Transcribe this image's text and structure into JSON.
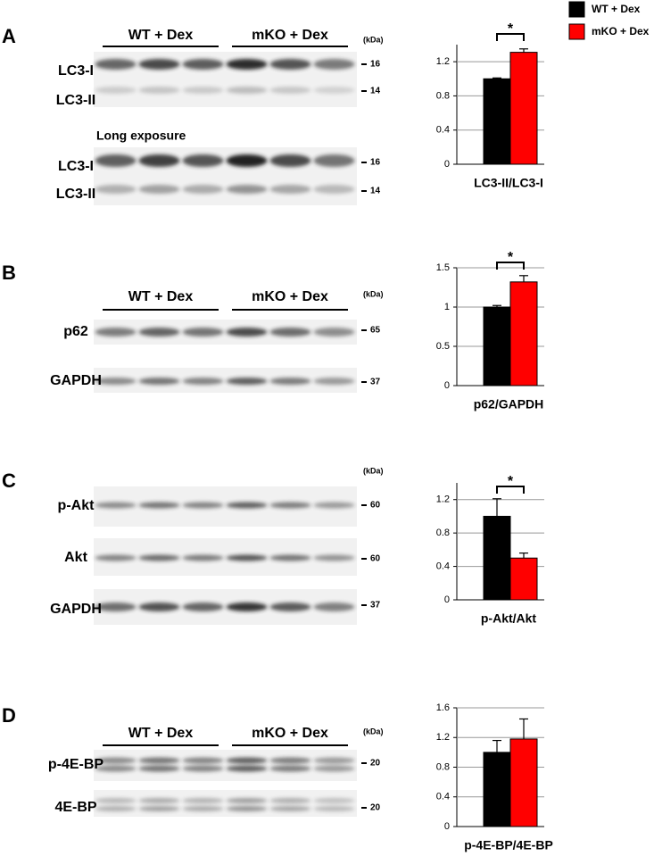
{
  "legend": {
    "labels": [
      "WT + Dex",
      "mKO + Dex"
    ],
    "colors": [
      "#000000",
      "#ff0000"
    ]
  },
  "panels": [
    {
      "letter": "A",
      "groups": [
        "WT + Dex",
        "mKO + Dex"
      ],
      "unit": "(kDa)",
      "note": "Long exposure",
      "blots": [
        {
          "label": "LC3-I",
          "marker": 16
        },
        {
          "label": "LC3-II",
          "marker": 14
        },
        {
          "label": "LC3-I",
          "marker": 16
        },
        {
          "label": "LC3-II",
          "marker": 14
        }
      ]
    },
    {
      "letter": "B",
      "groups": [
        "WT + Dex",
        "mKO + Dex"
      ],
      "unit": "(kDa)",
      "blots": [
        {
          "label": "p62",
          "marker": 65
        },
        {
          "label": "GAPDH",
          "marker": 37
        }
      ]
    },
    {
      "letter": "C",
      "unit": "(kDa)",
      "blots": [
        {
          "label": "p-Akt",
          "marker": 60
        },
        {
          "label": "Akt",
          "marker": 60
        },
        {
          "label": "GAPDH",
          "marker": 37
        }
      ]
    },
    {
      "letter": "D",
      "groups": [
        "WT + Dex",
        "mKO + Dex"
      ],
      "unit": "(kDa)",
      "blots": [
        {
          "label": "p-4E-BP",
          "marker": 20
        },
        {
          "label": "4E-BP",
          "marker": 20
        }
      ]
    }
  ],
  "chart_data": [
    {
      "type": "bar",
      "xlabel": "LC3-II/LC3-I",
      "values": [
        1.0,
        1.31
      ],
      "errors": [
        0.01,
        0.04
      ],
      "ylim": [
        0,
        1.4
      ],
      "yticks": [
        0,
        0.4,
        0.8,
        1.2
      ],
      "grid": true,
      "annotation": "*"
    },
    {
      "type": "bar",
      "xlabel": "p62/GAPDH",
      "values": [
        1.0,
        1.32
      ],
      "errors": [
        0.02,
        0.08
      ],
      "ylim": [
        0,
        1.5
      ],
      "yticks": [
        0,
        0.5,
        1,
        1.5
      ],
      "grid": true,
      "annotation": "*"
    },
    {
      "type": "bar",
      "xlabel": "p-Akt/Akt",
      "values": [
        1.0,
        0.5
      ],
      "errors": [
        0.21,
        0.06
      ],
      "ylim": [
        0,
        1.4
      ],
      "yticks": [
        0,
        0.4,
        0.8,
        1.2
      ],
      "grid": true,
      "annotation": "*"
    },
    {
      "type": "bar",
      "xlabel": "p-4E-BP/4E-BP",
      "values": [
        1.0,
        1.18
      ],
      "errors": [
        0.16,
        0.27
      ],
      "ylim": [
        0,
        1.6
      ],
      "yticks": [
        0,
        0.4,
        0.8,
        1.2,
        1.6
      ],
      "grid": true
    }
  ]
}
